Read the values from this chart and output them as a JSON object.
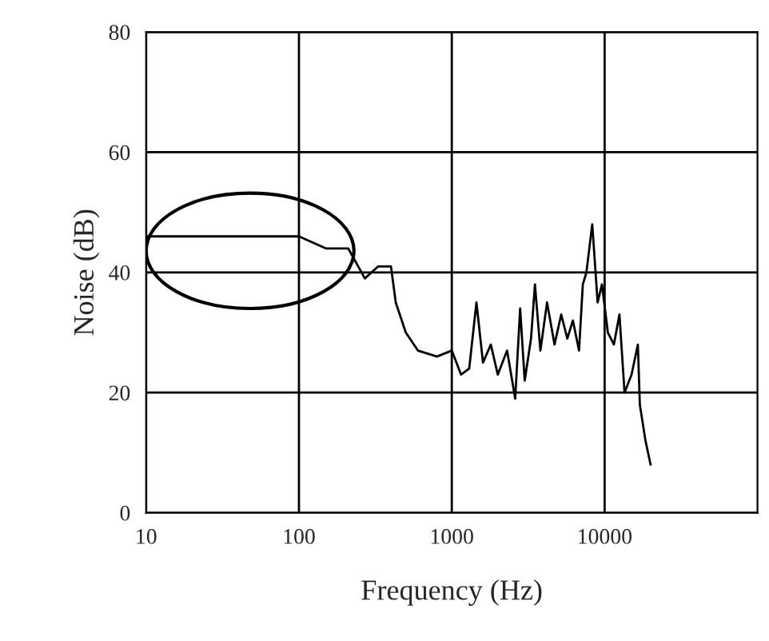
{
  "chart_data": {
    "type": "line",
    "xlabel": "Frequency (Hz)",
    "ylabel": "Noise (dB)",
    "log": "x",
    "grid": true,
    "marker": "none",
    "line_style": "solid",
    "xlim": [
      10,
      100000
    ],
    "xticks": [
      10,
      100,
      1000,
      10000
    ],
    "ylim": [
      0,
      80
    ],
    "yticks": [
      0,
      20,
      40,
      60,
      80
    ],
    "series": [
      {
        "color": "#000000",
        "x": [
          10,
          50,
          100,
          150,
          210,
          270,
          330,
          400,
          430,
          500,
          600,
          800,
          1000,
          1150,
          1300,
          1450,
          1600,
          1800,
          2000,
          2300,
          2600,
          2800,
          3000,
          3300,
          3500,
          3800,
          4200,
          4700,
          5200,
          5700,
          6200,
          6800,
          7200,
          7600,
          8300,
          9000,
          9600,
          10500,
          11500,
          12500,
          13500,
          15000,
          16500,
          17000,
          18500,
          20000
        ],
        "values": [
          46,
          46,
          46,
          44,
          44,
          39,
          41,
          41,
          35,
          30,
          27,
          26,
          27,
          23,
          24,
          35,
          25,
          28,
          23,
          27,
          19,
          34,
          22,
          29,
          38,
          27,
          35,
          28,
          33,
          29,
          32,
          27,
          38,
          40,
          48,
          35,
          38,
          30,
          28,
          33,
          20,
          23,
          28,
          18,
          12,
          8
        ]
      }
    ]
  }
}
